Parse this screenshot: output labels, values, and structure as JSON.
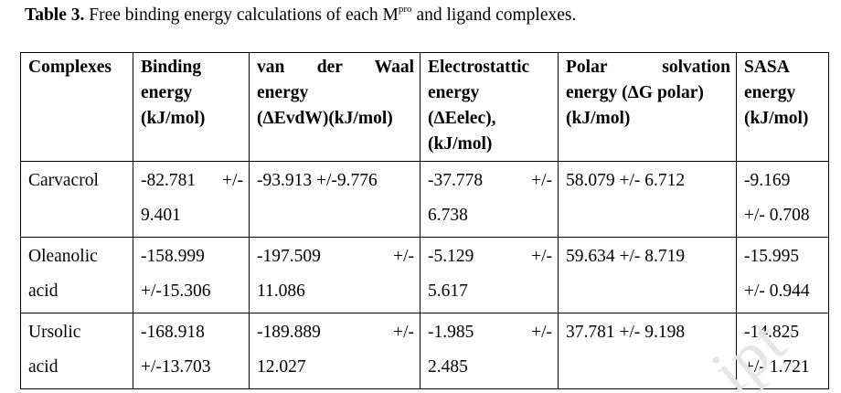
{
  "caption": {
    "label": "Table 3.",
    "text_before": "Free binding energy calculations of each M",
    "superscript": "pro",
    "text_after": " and ligand complexes."
  },
  "table": {
    "headers": [
      [
        "Complexes"
      ],
      [
        "Binding",
        "energy",
        "(kJ/mol)"
      ],
      [
        "van der Waal",
        "energy",
        "(ΔEvdW)(kJ/mol)"
      ],
      [
        "Electrostattic",
        "energy",
        "(ΔEelec),",
        "(kJ/mol)"
      ],
      [
        "Polar solvation",
        "energy (ΔG polar)",
        "(kJ/mol)"
      ],
      [
        "SASA",
        "energy",
        "(kJ/mol)"
      ]
    ],
    "rows": [
      {
        "complex": [
          "Carvacrol"
        ],
        "binding": [
          "-82.781 +/-",
          "9.401"
        ],
        "vdw": [
          "-93.913 +/-9.776"
        ],
        "elec": [
          "-37.778 +/-",
          "6.738"
        ],
        "polar": [
          "58.079 +/- 6.712"
        ],
        "sasa": [
          "-9.169",
          "+/- 0.708"
        ]
      },
      {
        "complex": [
          "Oleanolic",
          "acid"
        ],
        "binding": [
          "-158.999",
          "+/-15.306"
        ],
        "vdw": [
          "-197.509 +/-",
          "11.086"
        ],
        "elec": [
          "-5.129 +/-",
          "5.617"
        ],
        "polar": [
          "59.634 +/- 8.719"
        ],
        "sasa": [
          "-15.995",
          "+/- 0.944"
        ]
      },
      {
        "complex": [
          "Ursolic",
          "acid"
        ],
        "binding": [
          "-168.918",
          "+/-13.703"
        ],
        "vdw": [
          "-189.889 +/-",
          "12.027"
        ],
        "elec": [
          "-1.985 +/-",
          "2.485"
        ],
        "polar": [
          "37.781 +/- 9.198"
        ],
        "sasa": [
          "-14.825",
          "+/- 1.721"
        ]
      }
    ]
  },
  "watermark": "ipt"
}
